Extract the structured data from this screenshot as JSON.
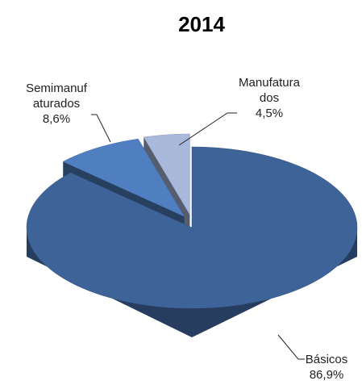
{
  "chart_data": {
    "type": "pie3d",
    "title": "2014",
    "categories": [
      "Básicos",
      "Semimanufaturados",
      "Manufaturados"
    ],
    "values": [
      86.9,
      8.6,
      4.5
    ],
    "value_labels": [
      "86,9%",
      "8,6%",
      "4,5%"
    ],
    "colors": [
      "#3e6399",
      "#4f7fc0",
      "#a9b9dc"
    ]
  }
}
